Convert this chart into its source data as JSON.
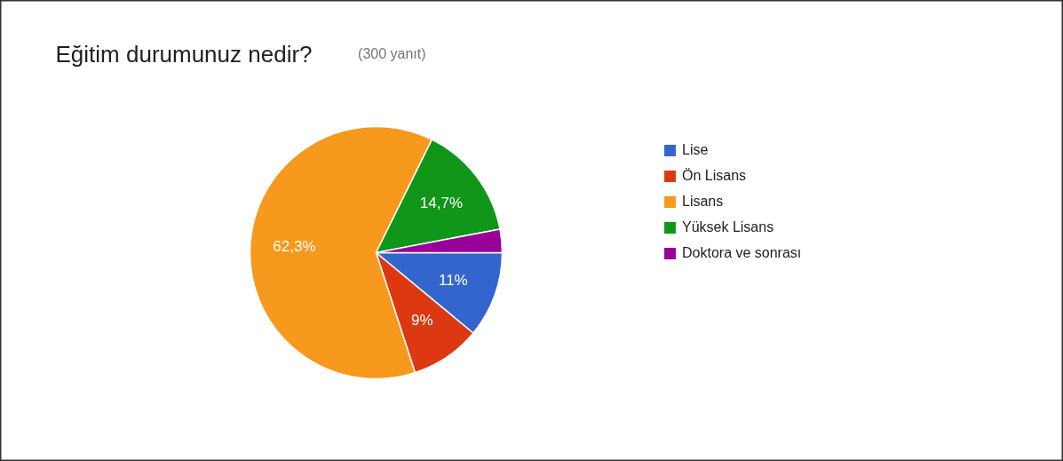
{
  "chart_data": {
    "type": "pie",
    "title": "Eğitim durumunuz nedir?",
    "subtitle": "(300 yanıt)",
    "categories": [
      "Lise",
      "Ön Lisans",
      "Lisans",
      "Yüksek Lisans",
      "Doktora ve sonrası"
    ],
    "values": [
      11,
      9,
      62.3,
      14.7,
      3
    ],
    "colors": [
      "#3366cc",
      "#dc3912",
      "#f7991c",
      "#109618",
      "#990099"
    ],
    "value_labels": [
      "11%",
      "9%",
      "62,3%",
      "14,7%",
      null
    ],
    "legend": "right"
  }
}
